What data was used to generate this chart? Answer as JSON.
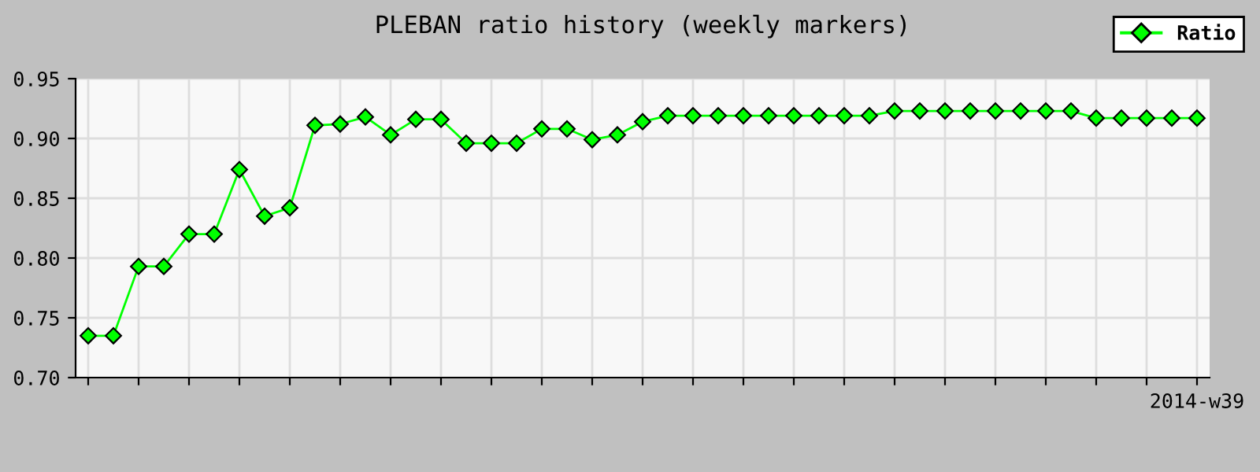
{
  "chart_data": {
    "type": "line",
    "title": "PLEBAN ratio history (weekly markers)",
    "categories": [
      null,
      null,
      null,
      null,
      null,
      null,
      null,
      null,
      null,
      null,
      null,
      null,
      null,
      null,
      null,
      null,
      null,
      null,
      null,
      null,
      null,
      null,
      null,
      null,
      null,
      null,
      null,
      null,
      null,
      null,
      null,
      null,
      null,
      null,
      null,
      null,
      null,
      null,
      null,
      null,
      null,
      null,
      null,
      null,
      "2014-w39"
    ],
    "series": [
      {
        "name": "Ratio",
        "color": "#00ff00",
        "values": [
          0.735,
          0.735,
          0.793,
          0.793,
          0.82,
          0.82,
          0.874,
          0.835,
          0.842,
          0.911,
          0.912,
          0.918,
          0.903,
          0.916,
          0.916,
          0.896,
          0.896,
          0.896,
          0.908,
          0.908,
          0.899,
          0.903,
          0.914,
          0.919,
          0.919,
          0.919,
          0.919,
          0.919,
          0.919,
          0.919,
          0.919,
          0.919,
          0.923,
          0.923,
          0.923,
          0.923,
          0.923,
          0.923,
          0.923,
          0.923,
          0.917,
          0.917,
          0.917,
          0.917,
          0.917
        ]
      }
    ],
    "ylim": [
      0.7,
      0.95
    ],
    "yticks": [
      {
        "value": 0.7,
        "label": "0.70"
      },
      {
        "value": 0.75,
        "label": "0.75"
      },
      {
        "value": 0.8,
        "label": "0.80"
      },
      {
        "value": 0.85,
        "label": "0.85"
      },
      {
        "value": 0.9,
        "label": "0.90"
      },
      {
        "value": 0.95,
        "label": "0.95"
      }
    ],
    "grid": true,
    "legend": "top right",
    "marker": "diamond",
    "line_style": "solid"
  }
}
